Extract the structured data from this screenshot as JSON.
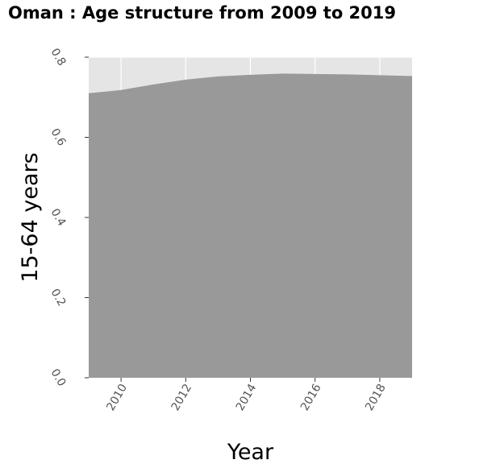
{
  "chart_data": {
    "type": "area",
    "title": "Oman : Age structure from 2009 to 2019",
    "xlabel": "Year",
    "ylabel": "15-64 years",
    "x": [
      2009,
      2010,
      2011,
      2012,
      2013,
      2014,
      2015,
      2016,
      2017,
      2018,
      2019
    ],
    "values": [
      0.71,
      0.718,
      0.732,
      0.744,
      0.752,
      0.756,
      0.759,
      0.758,
      0.757,
      0.755,
      0.753
    ],
    "xlim": [
      2009,
      2019
    ],
    "ylim": [
      0,
      0.8
    ],
    "x_ticks": [
      2010,
      2012,
      2014,
      2016,
      2018
    ],
    "x_tick_labels": [
      "2010",
      "2012",
      "2014",
      "2016",
      "2018"
    ],
    "y_ticks": [
      0,
      0.2,
      0.4,
      0.6,
      0.8
    ],
    "y_tick_labels": [
      "0.0",
      "0.2",
      "0.4",
      "0.6",
      "0.8"
    ],
    "grid": true,
    "colors": {
      "area_fill": "#999999",
      "plot_background": "#e5e5e5",
      "grid": "#ffffff"
    }
  }
}
